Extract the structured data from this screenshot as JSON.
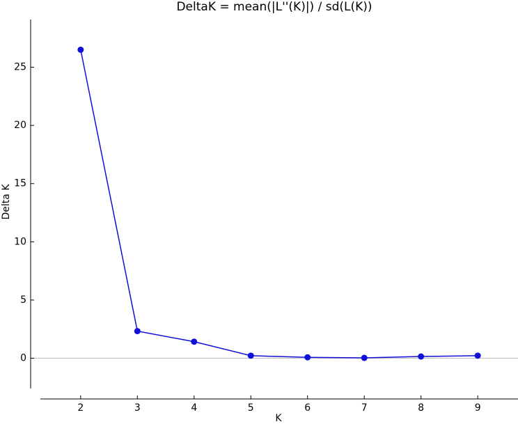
{
  "chart_data": {
    "type": "line",
    "title": "DeltaK = mean(|L''(K)|) / sd(L(K))",
    "x_label": "K",
    "y_label": "Delta K",
    "x": [
      2,
      3,
      4,
      5,
      6,
      7,
      8,
      9
    ],
    "series": [
      {
        "name": "Delta K",
        "color": "#1010d8",
        "values": [
          26.5,
          2.33,
          1.42,
          0.22,
          0.08,
          0.03,
          0.15,
          0.22
        ]
      }
    ],
    "xlim": [
      1.29,
      9.71
    ],
    "xticks": [
      2,
      3,
      4,
      5,
      6,
      7,
      8,
      9
    ],
    "ylim": [
      -2.6,
      29.1
    ],
    "yticks": [
      0,
      5,
      10,
      15,
      20,
      25
    ],
    "zero_line": true,
    "legend": false
  }
}
